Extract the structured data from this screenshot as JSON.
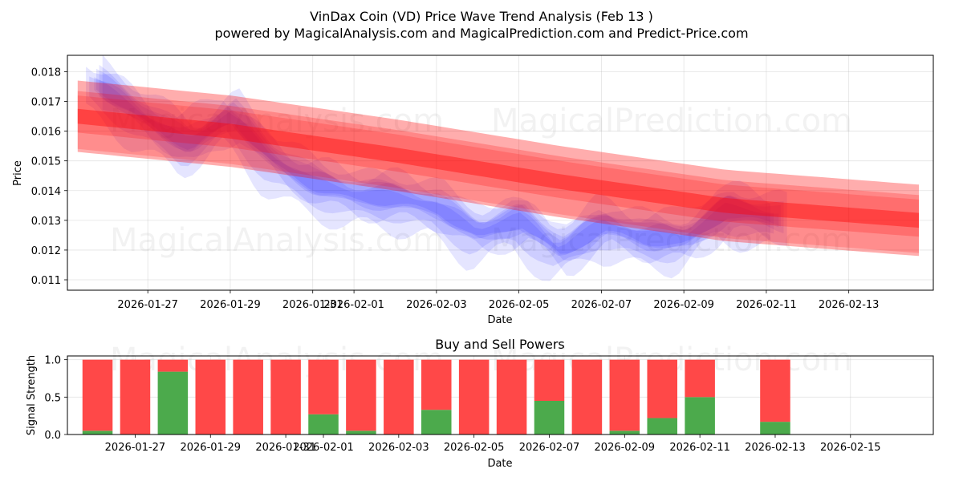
{
  "chart_data": [
    {
      "type": "line",
      "title_line1": "VinDax Coin (VD) Price Wave Trend Analysis (Feb 13 )",
      "title_line2": "powered by MagicalAnalysis.com and MagicalPrediction.com and Predict-Price.com",
      "xlabel": "Date",
      "ylabel": "Price",
      "x_ticks": [
        "2026-01-27",
        "2026-01-29",
        "2026-01-31",
        "2026-02-01",
        "2026-02-03",
        "2026-02-05",
        "2026-02-07",
        "2026-02-09",
        "2026-02-11",
        "2026-02-13"
      ],
      "y_ticks": [
        "0.011",
        "0.012",
        "0.013",
        "0.014",
        "0.015",
        "0.016",
        "0.017",
        "0.018"
      ],
      "ylim": [
        0.01065,
        0.01855
      ],
      "xlim_days": [
        -3.95,
        17.05
      ],
      "watermarks": [
        "MagicalAnalysis.com",
        "MagicalPrediction.com",
        "MagicalAnalysis.com",
        "MagicalPrediction.com"
      ],
      "series": [
        {
          "name": "price wave (blue bands)",
          "color": "#0000ff",
          "x_days": [
            -3.3,
            -2.2,
            -1.0,
            0.0,
            1.0,
            2.0,
            3.0,
            4.0,
            5.0,
            6.0,
            7.0,
            8.0,
            9.0,
            10.0,
            11.0,
            12.0,
            13.3
          ],
          "values": [
            0.0176,
            0.0165,
            0.0155,
            0.0165,
            0.015,
            0.0142,
            0.0138,
            0.0137,
            0.0134,
            0.0125,
            0.013,
            0.0119,
            0.0128,
            0.0124,
            0.0123,
            0.0133,
            0.013
          ]
        },
        {
          "name": "trend (red band)",
          "color": "#ff0000",
          "x_days": [
            -3.7,
            0.0,
            4.0,
            8.0,
            12.0,
            16.7
          ],
          "values": [
            0.0165,
            0.016,
            0.0152,
            0.0143,
            0.0135,
            0.013
          ]
        }
      ]
    },
    {
      "type": "bar",
      "title": "Buy and Sell Powers",
      "xlabel": "Date",
      "ylabel": "Signal Strength",
      "x_ticks": [
        "2026-01-27",
        "2026-01-29",
        "2026-01-31",
        "2026-02-01",
        "2026-02-03",
        "2026-02-05",
        "2026-02-07",
        "2026-02-09",
        "2026-02-11",
        "2026-02-13",
        "2026-02-15"
      ],
      "y_ticks": [
        "0.0",
        "0.5",
        "1.0"
      ],
      "ylim": [
        0,
        1.05
      ],
      "xlim_days": [
        -3.8,
        19.2
      ],
      "watermarks": [
        "MagicalAnalysis.com",
        "MagicalPrediction.com"
      ],
      "categories_days": [
        -3,
        -2,
        -1,
        0,
        1,
        2,
        3,
        4,
        5,
        6,
        7,
        8,
        9,
        10,
        11,
        12,
        13,
        15
      ],
      "series": [
        {
          "name": "Buy",
          "color": "#4caa4c",
          "values": [
            0.05,
            0.0,
            0.84,
            0.0,
            0.0,
            0.0,
            0.27,
            0.05,
            0.0,
            0.33,
            0.0,
            0.0,
            0.45,
            0.0,
            0.05,
            0.22,
            0.5,
            0.17
          ]
        },
        {
          "name": "Sell",
          "color": "#ff4848",
          "values": [
            0.95,
            1.0,
            0.16,
            1.0,
            1.0,
            1.0,
            0.73,
            0.95,
            1.0,
            0.67,
            1.0,
            1.0,
            0.55,
            1.0,
            0.95,
            0.78,
            0.5,
            0.83
          ]
        }
      ]
    }
  ]
}
